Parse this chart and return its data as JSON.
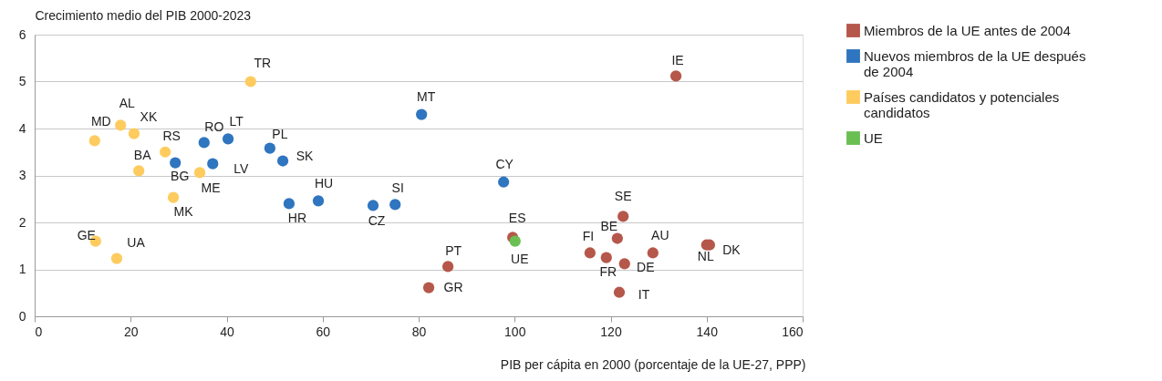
{
  "chart_data": {
    "type": "scatter",
    "ylabel": "Crecimiento medio del PIB 2000-2023",
    "xlabel": "PIB per cápita en 2000 (porcentaje de la UE-27, PPP)",
    "xlim": [
      0,
      160
    ],
    "xticks": [
      0,
      20,
      40,
      60,
      80,
      100,
      120,
      140,
      160
    ],
    "ylim": [
      0,
      6
    ],
    "yticks": [
      0,
      1,
      2,
      3,
      4,
      5,
      6
    ],
    "grid": "y",
    "legend": "right",
    "marker": "circle",
    "series": [
      {
        "name": "Miembros de la UE antes de 2004",
        "color": "#b5574a",
        "x": [
          82.1,
          86.1,
          99.6,
          115.7,
          119.1,
          121.4,
          122.6,
          122.9,
          121.8,
          128.8,
          133.6,
          140.0,
          140.6
        ],
        "values": [
          0.61,
          1.06,
          1.68,
          1.35,
          1.25,
          1.66,
          2.13,
          1.12,
          0.51,
          1.35,
          5.12,
          1.52,
          1.52
        ]
      },
      {
        "name": "Nuevos miembros de la UE después de 2004",
        "color": "#2f75bf",
        "x": [
          29.3,
          35.3,
          40.3,
          37.1,
          49.0,
          51.7,
          53.0,
          59.1,
          70.5,
          75.1,
          80.6,
          97.7
        ],
        "values": [
          3.27,
          3.7,
          3.78,
          3.25,
          3.58,
          3.31,
          2.4,
          2.46,
          2.36,
          2.38,
          4.3,
          2.86
        ]
      },
      {
        "name": "Países candidatos y potenciales candidatos",
        "color": "#fecb5e",
        "x": [
          12.5,
          17.9,
          20.7,
          27.2,
          21.7,
          34.4,
          28.9,
          12.7,
          17.1,
          45.0
        ],
        "values": [
          3.74,
          4.07,
          3.89,
          3.5,
          3.1,
          3.06,
          2.53,
          1.6,
          1.23,
          5.0
        ]
      },
      {
        "name": "UE",
        "color": "#6abf53",
        "x": [
          100.1
        ],
        "values": [
          1.6
        ]
      }
    ],
    "annotations": [
      {
        "text": "GR",
        "x": 82.1,
        "y": 0.61
      },
      {
        "text": "PT",
        "x": 86.1,
        "y": 1.06
      },
      {
        "text": "ES",
        "x": 99.6,
        "y": 1.68
      },
      {
        "text": "FI",
        "x": 115.7,
        "y": 1.35
      },
      {
        "text": "FR",
        "x": 119.1,
        "y": 1.25
      },
      {
        "text": "BE",
        "x": 121.4,
        "y": 1.66
      },
      {
        "text": "SE",
        "x": 122.6,
        "y": 2.13
      },
      {
        "text": "DE",
        "x": 122.9,
        "y": 1.12
      },
      {
        "text": "IT",
        "x": 121.8,
        "y": 0.51
      },
      {
        "text": "AU",
        "x": 128.8,
        "y": 1.35
      },
      {
        "text": "IE",
        "x": 133.6,
        "y": 5.12
      },
      {
        "text": "NL",
        "x": 140.0,
        "y": 1.52
      },
      {
        "text": "DK",
        "x": 140.6,
        "y": 1.52
      },
      {
        "text": "BG",
        "x": 29.3,
        "y": 3.27
      },
      {
        "text": "RO",
        "x": 35.3,
        "y": 3.7
      },
      {
        "text": "LT",
        "x": 40.3,
        "y": 3.78
      },
      {
        "text": "LV",
        "x": 37.1,
        "y": 3.25
      },
      {
        "text": "PL",
        "x": 49.0,
        "y": 3.58
      },
      {
        "text": "SK",
        "x": 51.7,
        "y": 3.31
      },
      {
        "text": "HR",
        "x": 53.0,
        "y": 2.4
      },
      {
        "text": "HU",
        "x": 59.1,
        "y": 2.46
      },
      {
        "text": "CZ",
        "x": 70.5,
        "y": 2.36
      },
      {
        "text": "SI",
        "x": 75.1,
        "y": 2.38
      },
      {
        "text": "MT",
        "x": 80.6,
        "y": 4.3
      },
      {
        "text": "CY",
        "x": 97.7,
        "y": 2.86
      },
      {
        "text": "MD",
        "x": 12.5,
        "y": 3.74
      },
      {
        "text": "AL",
        "x": 17.9,
        "y": 4.07
      },
      {
        "text": "XK",
        "x": 20.7,
        "y": 3.89
      },
      {
        "text": "RS",
        "x": 27.2,
        "y": 3.5
      },
      {
        "text": "BA",
        "x": 21.7,
        "y": 3.1
      },
      {
        "text": "ME",
        "x": 34.4,
        "y": 3.06
      },
      {
        "text": "MK",
        "x": 28.9,
        "y": 2.53
      },
      {
        "text": "GE",
        "x": 12.7,
        "y": 1.6
      },
      {
        "text": "UA",
        "x": 17.1,
        "y": 1.23
      },
      {
        "text": "TR",
        "x": 45.0,
        "y": 5.0
      },
      {
        "text": "UE",
        "x": 100.1,
        "y": 1.6
      }
    ]
  }
}
